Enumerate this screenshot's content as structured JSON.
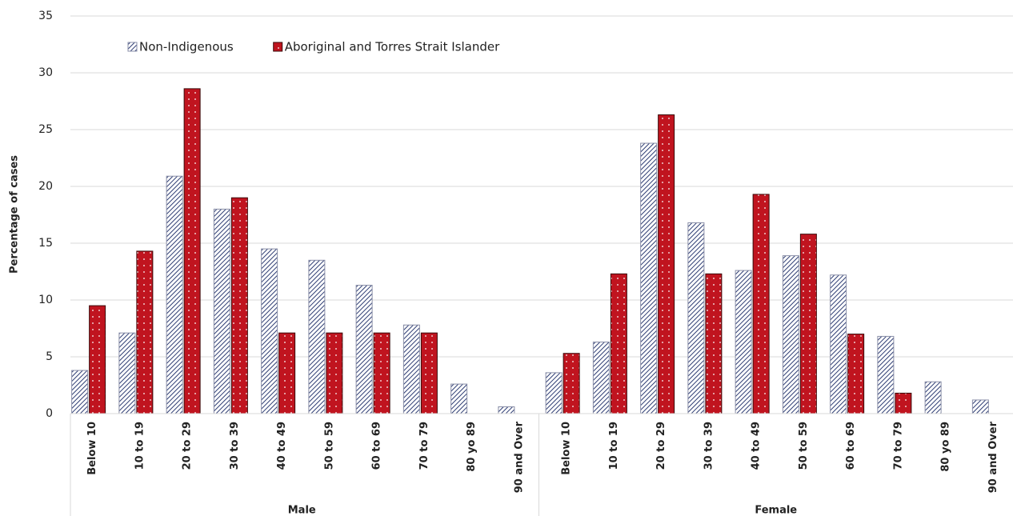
{
  "chart_data": {
    "type": "bar",
    "y_label": "Percentage of cases",
    "categories": [
      "Below 10",
      "10 to 19",
      "20 to 29",
      "30 to 39",
      "40 to 49",
      "50 to 59",
      "60 to 69",
      "70 to 79",
      "80 yo 89",
      "90 and Over",
      "Below 10",
      "10 to 19",
      "20 to 29",
      "30 to 39",
      "40 to 49",
      "50 to 59",
      "60 to 69",
      "70 to 79",
      "80 yo 89",
      "90 and Over"
    ],
    "category_groups": [
      "Male",
      "Female"
    ],
    "series": [
      {
        "name": "Non-Indigenous",
        "color": "#2e3d73",
        "pattern": "hatch",
        "values": [
          3.8,
          7.1,
          20.9,
          18.0,
          14.5,
          13.5,
          11.3,
          7.8,
          2.6,
          0.6,
          3.6,
          6.3,
          23.8,
          16.8,
          12.6,
          13.9,
          12.2,
          6.8,
          2.8,
          1.2
        ]
      },
      {
        "name": "Aboriginal and Torres Strait Islander",
        "color": "#c0141f",
        "pattern": "dots",
        "values": [
          9.5,
          14.3,
          28.6,
          19.0,
          7.1,
          7.1,
          7.1,
          7.1,
          0,
          0,
          5.3,
          12.3,
          26.3,
          12.3,
          19.3,
          15.8,
          7.0,
          1.8,
          0,
          0
        ]
      }
    ],
    "ylim": [
      0,
      35
    ],
    "yticks": [
      0,
      5,
      10,
      15,
      20,
      25,
      30,
      35
    ],
    "grid": true,
    "legend": "top-left"
  }
}
